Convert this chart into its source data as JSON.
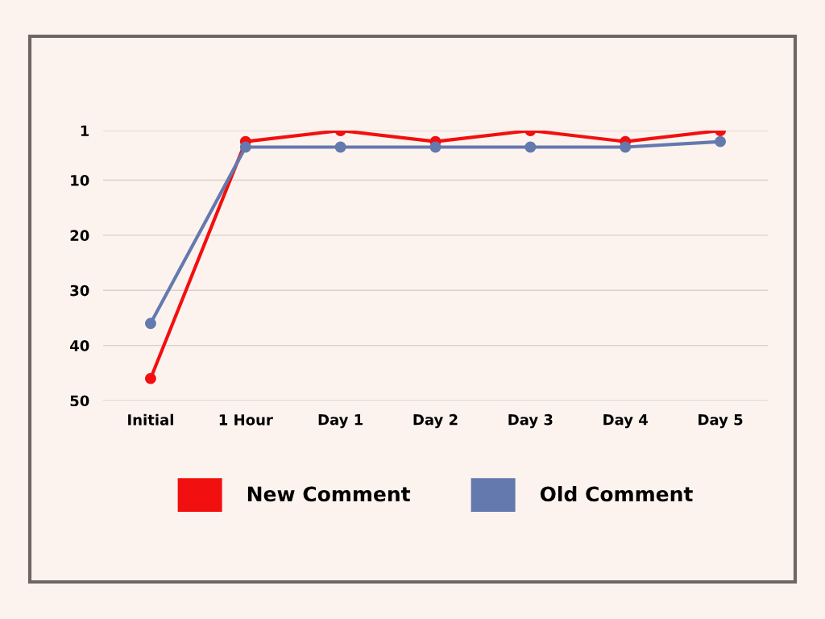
{
  "chart_data": {
    "type": "line",
    "categories": [
      "Initial",
      "1 Hour",
      "Day 1",
      "Day 2",
      "Day 3",
      "Day 4",
      "Day 5"
    ],
    "series": [
      {
        "name": "New Comment",
        "color": "#f20f0f",
        "values": [
          46,
          3,
          1,
          3,
          1,
          3,
          1
        ]
      },
      {
        "name": "Old Comment",
        "color": "#6479ae",
        "values": [
          36,
          4,
          4,
          4,
          4,
          4,
          3
        ]
      }
    ],
    "ylim": [
      50,
      1
    ],
    "yticks": [
      1,
      10,
      20,
      30,
      40,
      50
    ],
    "grid": "y",
    "legend": "bottom",
    "marker": "circle",
    "line_style": "solid"
  }
}
